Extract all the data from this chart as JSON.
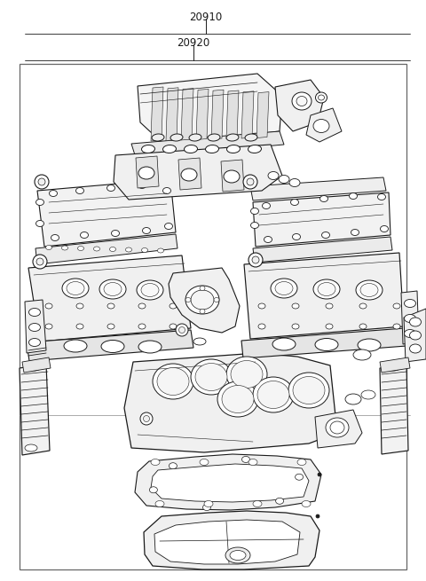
{
  "label_20910": "20910",
  "label_20920": "20920",
  "bg_color": "#ffffff",
  "line_color": "#1a1a1a",
  "border_color": "#555555",
  "fig_width": 4.8,
  "fig_height": 6.55,
  "dpi": 100
}
